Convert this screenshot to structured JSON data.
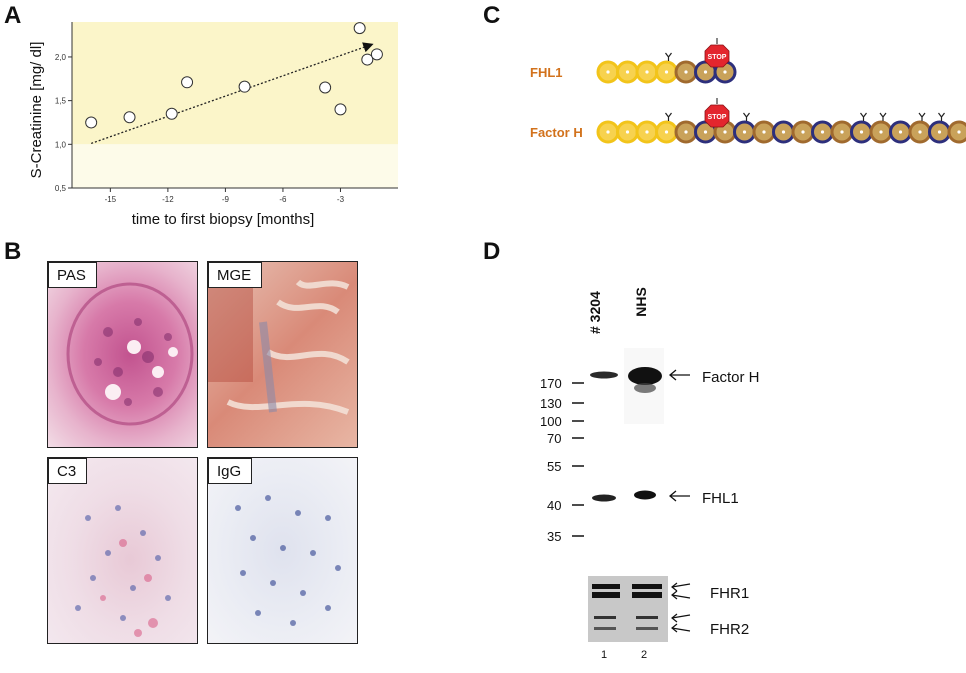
{
  "panels": {
    "a": "A",
    "b": "B",
    "c": "C",
    "d": "D"
  },
  "colors": {
    "plot_bg_high": "#fbf5c9",
    "plot_bg_low": "#fdfbe9",
    "domain_yellow": "#f2c41a",
    "domain_brown": "#a06a2e",
    "domain_navy": "#2d2f7c",
    "stop_red": "#e3262e",
    "label_orange": "#d2721c"
  },
  "chart_data": {
    "type": "scatter",
    "xlabel": "time to first biopsy [months]",
    "ylabel": "S-Creatinine [mg/ dl]",
    "x_ticks": [
      "-15",
      "-12",
      "-9",
      "-6",
      "-3"
    ],
    "y_ticks": [
      "0,5",
      "1,0",
      "1,5",
      "2,0"
    ],
    "xlim": [
      -17,
      0
    ],
    "ylim": [
      0.5,
      2.4
    ],
    "points": [
      {
        "x": -16.0,
        "y": 1.25
      },
      {
        "x": -14.0,
        "y": 1.31
      },
      {
        "x": -11.8,
        "y": 1.35
      },
      {
        "x": -11.0,
        "y": 1.71
      },
      {
        "x": -8.0,
        "y": 1.66
      },
      {
        "x": -3.8,
        "y": 1.65
      },
      {
        "x": -3.0,
        "y": 1.4
      },
      {
        "x": -2.0,
        "y": 2.33
      },
      {
        "x": -1.6,
        "y": 1.97
      },
      {
        "x": -1.1,
        "y": 2.03
      }
    ],
    "trend": {
      "from": {
        "x": -16.0,
        "y": 1.01
      },
      "to": {
        "x": -1.4,
        "y": 2.14
      }
    }
  },
  "micrographs": [
    {
      "label": "PAS"
    },
    {
      "label": "MGE"
    },
    {
      "label": "C3"
    },
    {
      "label": "IgG"
    }
  ],
  "proteins": {
    "fhl1": {
      "label": "FHL1",
      "stop": "STOP"
    },
    "factor_h": {
      "label": "Factor H",
      "stop": "STOP"
    }
  },
  "blot": {
    "lanes": [
      "# 3204",
      "NHS"
    ],
    "lane_numbers": [
      "1",
      "2"
    ],
    "markers": [
      "170",
      "130",
      "100",
      "70",
      "55",
      "40",
      "35"
    ],
    "bands": [
      "Factor H",
      "FHL1"
    ],
    "lower_bands": [
      "FHR1",
      "FHR2"
    ]
  }
}
